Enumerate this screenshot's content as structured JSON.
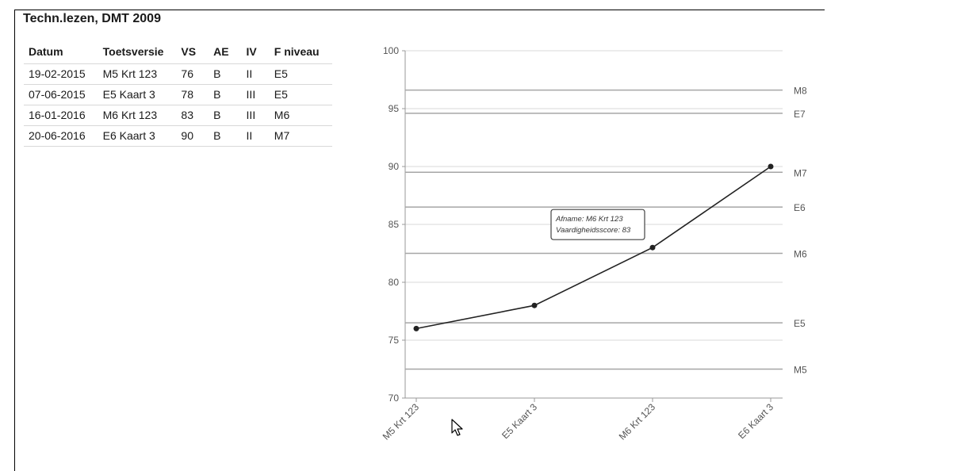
{
  "section": {
    "title": "Techn.lezen, DMT 2009"
  },
  "table": {
    "headers": [
      "Datum",
      "Toetsversie",
      "VS",
      "AE",
      "IV",
      "F niveau"
    ],
    "rows": [
      [
        "19-02-2015",
        "M5 Krt 123",
        "76",
        "B",
        "II",
        "E5"
      ],
      [
        "07-06-2015",
        "E5 Kaart 3",
        "78",
        "B",
        "III",
        "E5"
      ],
      [
        "16-01-2016",
        "M6 Krt 123",
        "83",
        "B",
        "III",
        "M6"
      ],
      [
        "20-06-2016",
        "E6 Kaart 3",
        "90",
        "B",
        "II",
        "M7"
      ]
    ]
  },
  "chart_data": {
    "type": "line",
    "title": "",
    "xlabel": "",
    "ylabel": "",
    "categories": [
      "M5 Krt 123",
      "E5 Kaart 3",
      "M6 Krt 123",
      "E6 Kaart 3"
    ],
    "series": [
      {
        "values": [
          76,
          78,
          83,
          90
        ]
      }
    ],
    "ylim": [
      70,
      100
    ],
    "yticks": [
      70,
      75,
      80,
      85,
      90,
      95,
      100
    ],
    "grid": true,
    "reference_lines": [
      {
        "label": "M8",
        "value": 96.6
      },
      {
        "label": "E7",
        "value": 94.6
      },
      {
        "label": "M7",
        "value": 89.5
      },
      {
        "label": "E6",
        "value": 86.5
      },
      {
        "label": "M6",
        "value": 82.5
      },
      {
        "label": "E5",
        "value": 76.5
      },
      {
        "label": "M5",
        "value": 72.5
      }
    ],
    "tooltip": {
      "point_index": 2,
      "line1": "Afname: M6 Krt 123",
      "line2": "Vaardigheidsscore: 83"
    }
  },
  "colors": {
    "line": "#222222",
    "gridline": "#d9d9d9",
    "refline": "#a6a6a6",
    "text": "#555555"
  }
}
